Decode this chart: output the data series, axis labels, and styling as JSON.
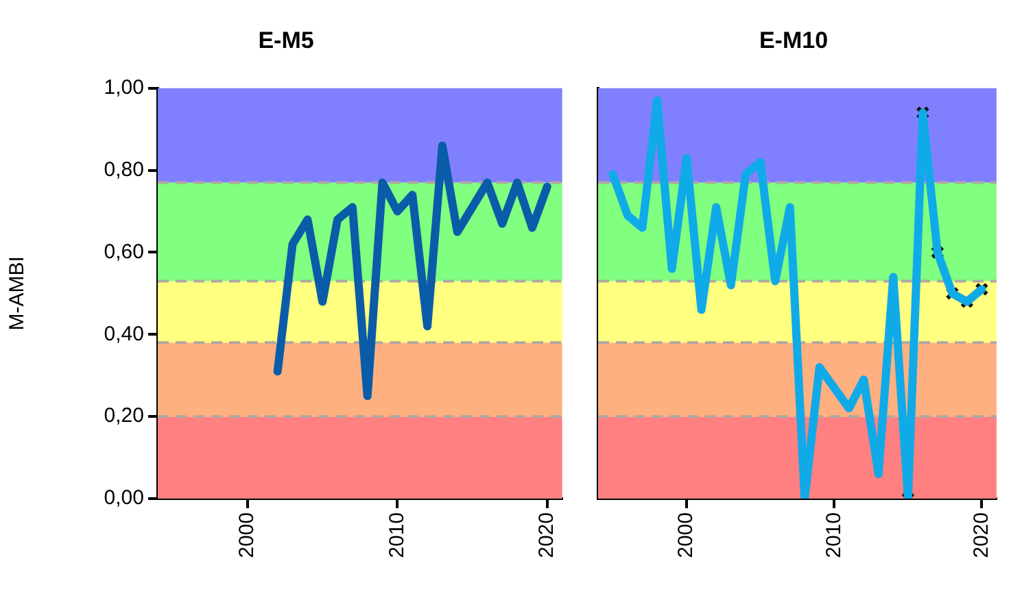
{
  "chart_data": [
    {
      "type": "line",
      "title": "E-M5",
      "ylabel": "M-AMBI",
      "xlim": [
        1994,
        2021
      ],
      "xticks": [
        2000,
        2010,
        2020
      ],
      "ylim": [
        0,
        1
      ],
      "yticks": [
        {
          "value": 0,
          "label": "0,00"
        },
        {
          "value": 0.2,
          "label": "0,20"
        },
        {
          "value": 0.4,
          "label": "0,40"
        },
        {
          "value": 0.6,
          "label": "0,60"
        },
        {
          "value": 0.8,
          "label": "0,80"
        },
        {
          "value": 1,
          "label": "1,00"
        }
      ],
      "bands": [
        {
          "axis": "y",
          "from": 0,
          "to": 0.2,
          "color": "#ff8080"
        },
        {
          "axis": "y",
          "from": 0.2,
          "to": 0.38,
          "color": "#ffb080"
        },
        {
          "axis": "y",
          "from": 0.38,
          "to": 0.53,
          "color": "#ffff80"
        },
        {
          "axis": "y",
          "from": 0.53,
          "to": 0.77,
          "color": "#80ff80"
        },
        {
          "axis": "y",
          "from": 0.77,
          "to": 1,
          "color": "#8080ff"
        }
      ],
      "ref_lines": [
        {
          "axis": "y",
          "value": 0.2,
          "color": "#b0a8a0",
          "line_style": "dashed"
        },
        {
          "axis": "y",
          "value": 0.38,
          "color": "#b0a8a0",
          "line_style": "dashed"
        },
        {
          "axis": "y",
          "value": 0.53,
          "color": "#b0a8a0",
          "line_style": "dashed"
        },
        {
          "axis": "y",
          "value": 0.77,
          "color": "#b0a8a0",
          "line_style": "dashed"
        }
      ],
      "series": [
        {
          "color": "#0a5ca8",
          "x": [
            2002,
            2003,
            2004,
            2005,
            2006,
            2007,
            2008,
            2009,
            2010,
            2011,
            2012,
            2013,
            2014,
            2015,
            2016,
            2017,
            2018,
            2019,
            2020
          ],
          "values": [
            0.31,
            0.62,
            0.68,
            0.48,
            0.68,
            0.71,
            0.25,
            0.77,
            0.7,
            0.74,
            0.42,
            0.86,
            0.65,
            0.71,
            0.77,
            0.67,
            0.77,
            0.66,
            0.76
          ]
        }
      ]
    },
    {
      "type": "line",
      "title": "E-M10",
      "tick_labels": "x",
      "xlim": [
        1994,
        2021
      ],
      "xticks": [
        2000,
        2010,
        2020
      ],
      "ylim": [
        0,
        1
      ],
      "bands": [
        {
          "axis": "y",
          "from": 0,
          "to": 0.2,
          "color": "#ff8080"
        },
        {
          "axis": "y",
          "from": 0.2,
          "to": 0.38,
          "color": "#ffb080"
        },
        {
          "axis": "y",
          "from": 0.38,
          "to": 0.53,
          "color": "#ffff80"
        },
        {
          "axis": "y",
          "from": 0.53,
          "to": 0.77,
          "color": "#80ff80"
        },
        {
          "axis": "y",
          "from": 0.77,
          "to": 1,
          "color": "#8080ff"
        }
      ],
      "ref_lines": [
        {
          "axis": "y",
          "value": 0.2,
          "color": "#b0a8a0",
          "line_style": "dashed"
        },
        {
          "axis": "y",
          "value": 0.38,
          "color": "#b0a8a0",
          "line_style": "dashed"
        },
        {
          "axis": "y",
          "value": 0.53,
          "color": "#b0a8a0",
          "line_style": "dashed"
        },
        {
          "axis": "y",
          "value": 0.77,
          "color": "#b0a8a0",
          "line_style": "dashed"
        }
      ],
      "series": [
        {
          "color": "#10aae8",
          "x": [
            1995,
            1996,
            1997,
            1998,
            1999,
            2000,
            2001,
            2002,
            2003,
            2004,
            2005,
            2006,
            2007,
            2008,
            2009,
            2010,
            2011,
            2012,
            2013,
            2014,
            2015,
            2016,
            2017,
            2018,
            2019,
            2020
          ],
          "values": [
            0.79,
            0.69,
            0.66,
            0.97,
            0.56,
            0.83,
            0.46,
            0.71,
            0.52,
            0.79,
            0.82,
            0.53,
            0.71,
            0.0,
            0.32,
            0.27,
            0.22,
            0.29,
            0.06,
            0.54,
            0.0,
            0.94,
            0.6,
            0.5,
            0.48,
            0.51
          ]
        },
        {
          "type": "scatter",
          "marker": "cross",
          "color": "#111111",
          "x": [
            2015,
            2016,
            2017,
            2018,
            2019,
            2020
          ],
          "values": [
            0.0,
            0.94,
            0.6,
            0.5,
            0.48,
            0.51
          ]
        }
      ]
    }
  ]
}
